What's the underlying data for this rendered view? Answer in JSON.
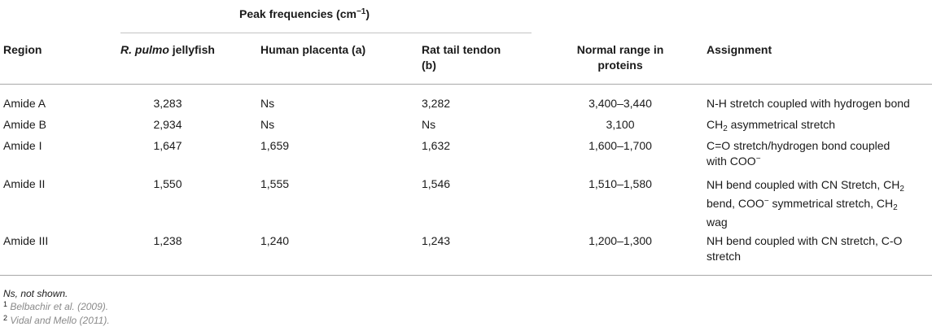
{
  "table": {
    "group_header": {
      "prefix": "Peak frequencies (cm",
      "sup": "−1",
      "suffix": ")"
    },
    "headers": {
      "region": "Region",
      "jellyfish_italic": "R. pulmo",
      "jellyfish_rest": " jellyfish",
      "placenta": "Human placenta (a)",
      "tendon_line1": "Rat tail tendon",
      "tendon_line2": "(b)",
      "normal_line1": "Normal range in",
      "normal_line2": "proteins",
      "assignment": "Assignment"
    },
    "rows": [
      {
        "region": "Amide A",
        "jellyfish": "3,283",
        "placenta": "Ns",
        "tendon": "3,282",
        "normal": "3,400–3,440",
        "assignment": {
          "l1a": "N-H stretch coupled with hydrogen bond"
        }
      },
      {
        "region": "Amide B",
        "jellyfish": "2,934",
        "placenta": "Ns",
        "tendon": "Ns",
        "normal": "3,100",
        "assignment": {
          "l1a": "CH",
          "l1sub": "2",
          "l1b": " asymmetrical stretch"
        }
      },
      {
        "region": "Amide I",
        "jellyfish": "1,647",
        "placenta": "1,659",
        "tendon": "1,632",
        "normal": "1,600–1,700",
        "assignment": {
          "l1a": "C=O stretch/hydrogen bond coupled",
          "l2a": "with COO",
          "l2sup": "−"
        }
      },
      {
        "region": "Amide II",
        "jellyfish": "1,550",
        "placenta": "1,555",
        "tendon": "1,546",
        "normal": "1,510–1,580",
        "assignment": {
          "l1a": "NH bend coupled with CN Stretch, CH",
          "l1sub": "2",
          "l2a": "bend, COO",
          "l2sup": "−",
          "l2b": " symmetrical stretch, CH",
          "l2sub": "2",
          "l3": "wag"
        }
      },
      {
        "region": "Amide III",
        "jellyfish": "1,238",
        "placenta": "1,240",
        "tendon": "1,243",
        "normal": "1,200–1,300",
        "assignment": {
          "l1a": "NH bend coupled with CN stretch, C-O",
          "l2a": "stretch"
        }
      }
    ]
  },
  "footnotes": {
    "ns": "Ns, not shown.",
    "n1_mark": "1",
    "n1_ref": "Belbachir et al. (2009).",
    "n2_mark": "2",
    "n2_ref": "Vidal and Mello (2011)."
  }
}
